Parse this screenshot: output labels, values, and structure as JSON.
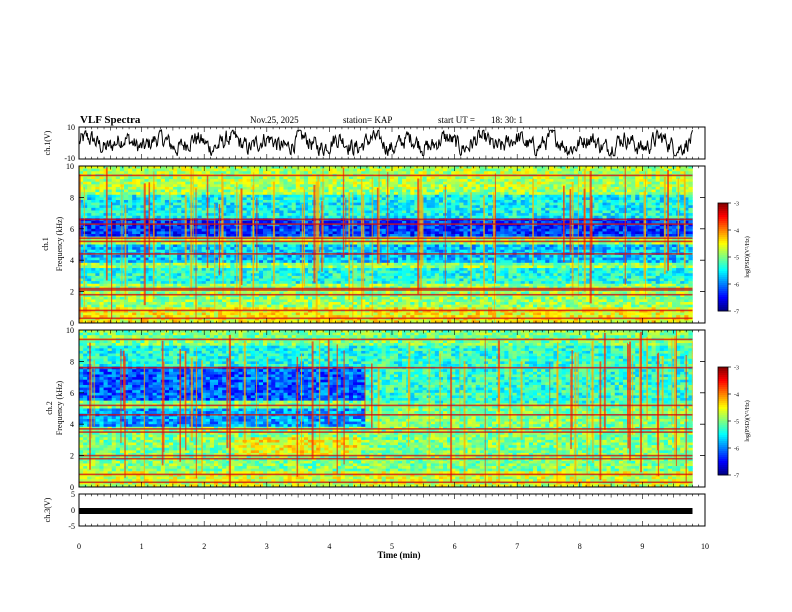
{
  "header": {
    "title": "VLF Spectra",
    "date": "Nov.25, 2025",
    "station": "station= KAP",
    "start_label": "start  UT  =",
    "start_time": "18: 30: 1"
  },
  "chart_data": [
    {
      "type": "line",
      "name": "ch1-waveform",
      "ylabel": "ch.1(V)",
      "ylim": [
        -10,
        10
      ],
      "yticks": [
        "10",
        "-10"
      ],
      "xlim": [
        0,
        10
      ],
      "note": "dense noisy waveform oscillating roughly between -7 and 7 V over 0-9.8 min"
    },
    {
      "type": "heatmap",
      "name": "ch1-spectrogram",
      "ylabel": "ch.1 Frequency (kHz)",
      "xlim": [
        0,
        10
      ],
      "ylim": [
        0,
        10
      ],
      "yticks": [
        "0",
        "2",
        "4",
        "6",
        "8",
        "10"
      ],
      "data_extent_min": 9.8,
      "colorbar": {
        "label": "log(PSD)(V²/Hz)",
        "range": [
          -7,
          -3
        ],
        "ticks": [
          "-3",
          "-4",
          "-5",
          "-6",
          "-7"
        ]
      },
      "bands_khz": [
        0.3,
        0.8,
        1.8,
        2.1,
        2.2,
        4.4,
        5.2,
        5.4,
        6.3,
        6.6,
        9.4
      ]
    },
    {
      "type": "heatmap",
      "name": "ch2-spectrogram",
      "ylabel": "ch.2 Frequency (kHz)",
      "xlim": [
        0,
        10
      ],
      "ylim": [
        0,
        10
      ],
      "yticks": [
        "0",
        "2",
        "4",
        "6",
        "8",
        "10"
      ],
      "data_extent_min": 9.8,
      "colorbar": {
        "label": "log(PSD)(V²/Hz)",
        "range": [
          -7,
          -3
        ],
        "ticks": [
          "-3",
          "-4",
          "-5",
          "-6",
          "-7"
        ]
      },
      "bands_khz": [
        0.3,
        0.8,
        1.8,
        2.0,
        3.5,
        3.7,
        4.6,
        5.2,
        7.6,
        9.4
      ]
    },
    {
      "type": "line",
      "name": "ch3-waveform",
      "ylabel": "ch.3(V)",
      "ylim": [
        -5,
        5
      ],
      "yticks": [
        "5",
        "0",
        "-5"
      ],
      "xlim": [
        0,
        10
      ],
      "note": "saturated flat band near -1 V for 0-9.8 min"
    }
  ],
  "xaxis": {
    "label": "Time  (min)",
    "ticks": [
      "0",
      "1",
      "2",
      "3",
      "4",
      "5",
      "6",
      "7",
      "8",
      "9",
      "10"
    ]
  }
}
